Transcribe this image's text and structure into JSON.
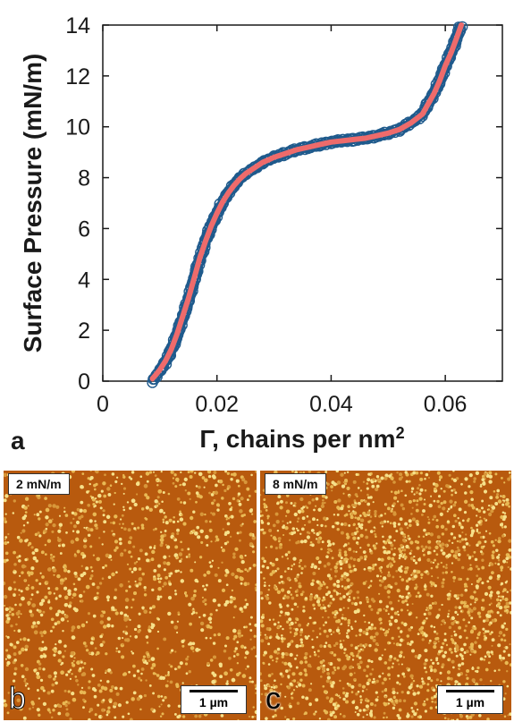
{
  "chart_data": {
    "type": "scatter",
    "title": "",
    "xlabel": "Γ, chains per nm",
    "xlabel_sup": "2",
    "ylabel": "Surface Pressure (mN/m)",
    "xlim": [
      0,
      0.07
    ],
    "ylim": [
      0,
      14
    ],
    "xticks": [
      0,
      0.02,
      0.04,
      0.06
    ],
    "xtick_labels": [
      "0",
      "0.02",
      "0.04",
      "0.06"
    ],
    "yticks": [
      0,
      2,
      4,
      6,
      8,
      10,
      12,
      14
    ],
    "ytick_labels": [
      "0",
      "2",
      "4",
      "6",
      "8",
      "10",
      "12",
      "14"
    ],
    "grid": false,
    "legend": "none",
    "series": [
      {
        "style": "open circles",
        "color": "#1f5a8c",
        "x": [
          0.0087,
          0.0093,
          0.01,
          0.011,
          0.012,
          0.013,
          0.014,
          0.015,
          0.016,
          0.017,
          0.018,
          0.019,
          0.02,
          0.021,
          0.022,
          0.023,
          0.024,
          0.025,
          0.026,
          0.027,
          0.028,
          0.029,
          0.03,
          0.032,
          0.034,
          0.036,
          0.038,
          0.04,
          0.042,
          0.044,
          0.046,
          0.048,
          0.05,
          0.052,
          0.054,
          0.056,
          0.057,
          0.058,
          0.059,
          0.06,
          0.061,
          0.062,
          0.0628
        ],
        "y": [
          0.0,
          0.2,
          0.4,
          0.75,
          1.2,
          1.8,
          2.5,
          3.2,
          4.0,
          4.8,
          5.5,
          6.1,
          6.6,
          7.05,
          7.4,
          7.7,
          7.95,
          8.15,
          8.3,
          8.45,
          8.6,
          8.7,
          8.8,
          8.95,
          9.1,
          9.2,
          9.3,
          9.4,
          9.45,
          9.5,
          9.55,
          9.65,
          9.75,
          9.9,
          10.15,
          10.5,
          10.9,
          11.3,
          11.8,
          12.4,
          12.9,
          13.5,
          14.0
        ]
      },
      {
        "style": "line",
        "color": "#ee6b6b",
        "x": [
          0.0087,
          0.0093,
          0.01,
          0.011,
          0.012,
          0.013,
          0.014,
          0.015,
          0.016,
          0.017,
          0.018,
          0.019,
          0.02,
          0.021,
          0.022,
          0.023,
          0.024,
          0.025,
          0.026,
          0.027,
          0.028,
          0.029,
          0.03,
          0.032,
          0.034,
          0.036,
          0.038,
          0.04,
          0.042,
          0.044,
          0.046,
          0.048,
          0.05,
          0.052,
          0.054,
          0.056,
          0.057,
          0.058,
          0.059,
          0.06,
          0.061,
          0.062,
          0.0628
        ],
        "y": [
          0.1,
          0.25,
          0.45,
          0.8,
          1.25,
          1.85,
          2.55,
          3.25,
          4.05,
          4.85,
          5.5,
          6.1,
          6.6,
          7.05,
          7.4,
          7.7,
          7.95,
          8.15,
          8.3,
          8.45,
          8.6,
          8.7,
          8.8,
          8.95,
          9.1,
          9.2,
          9.3,
          9.4,
          9.45,
          9.5,
          9.55,
          9.65,
          9.75,
          9.9,
          10.15,
          10.5,
          10.9,
          11.3,
          11.8,
          12.4,
          12.9,
          13.5,
          14.0
        ]
      }
    ]
  },
  "panels": {
    "a_letter": "a",
    "b_letter": "b",
    "c_letter": "c",
    "b_label": "2 mN/m",
    "c_label": "8 mN/m",
    "scalebar": "1 µm"
  }
}
